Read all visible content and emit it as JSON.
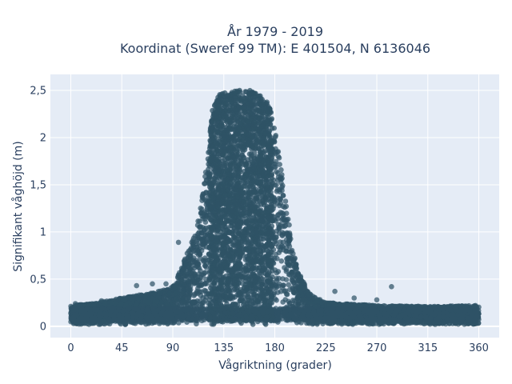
{
  "chart_data": {
    "type": "scatter",
    "title_lines": [
      "År 1979 - 2019",
      "Koordinat (Sweref 99 TM): E 401504, N 6136046"
    ],
    "xlabel": "Vågriktning (grader)",
    "ylabel": "Signifikant våghöjd (m)",
    "xlim": [
      -18,
      378
    ],
    "ylim": [
      -0.12,
      2.67
    ],
    "x_ticks": [
      {
        "value": 0,
        "label": "0"
      },
      {
        "value": 45,
        "label": "45"
      },
      {
        "value": 90,
        "label": "90"
      },
      {
        "value": 135,
        "label": "135"
      },
      {
        "value": 180,
        "label": "180"
      },
      {
        "value": 225,
        "label": "225"
      },
      {
        "value": 270,
        "label": "270"
      },
      {
        "value": 315,
        "label": "315"
      },
      {
        "value": 360,
        "label": "360"
      }
    ],
    "y_ticks": [
      {
        "value": 0,
        "label": "0"
      },
      {
        "value": 0.5,
        "label": "0,5"
      },
      {
        "value": 1,
        "label": "1"
      },
      {
        "value": 1.5,
        "label": "1,5"
      },
      {
        "value": 2,
        "label": "2"
      },
      {
        "value": 2.5,
        "label": "2,5"
      }
    ],
    "grid": true,
    "background_color": "#e5ecf6",
    "marker_color": "#2f5366",
    "envelope": {
      "description_points_upper_limit": [
        [
          0,
          0.22
        ],
        [
          20,
          0.24
        ],
        [
          45,
          0.3
        ],
        [
          60,
          0.33
        ],
        [
          75,
          0.36
        ],
        [
          90,
          0.42
        ],
        [
          100,
          0.7
        ],
        [
          110,
          1.0
        ],
        [
          115,
          1.3
        ],
        [
          120,
          1.75
        ],
        [
          125,
          2.3
        ],
        [
          130,
          2.45
        ],
        [
          140,
          2.5
        ],
        [
          150,
          2.5
        ],
        [
          160,
          2.5
        ],
        [
          170,
          2.42
        ],
        [
          175,
          2.35
        ],
        [
          180,
          2.1
        ],
        [
          185,
          1.75
        ],
        [
          190,
          1.3
        ],
        [
          195,
          0.9
        ],
        [
          200,
          0.6
        ],
        [
          210,
          0.35
        ],
        [
          225,
          0.25
        ],
        [
          270,
          0.22
        ],
        [
          315,
          0.21
        ],
        [
          360,
          0.22
        ]
      ],
      "lower_limit": 0.02
    },
    "outliers": [
      [
        4,
        0.24
      ],
      [
        27,
        0.27
      ],
      [
        48,
        0.02
      ],
      [
        58,
        0.43
      ],
      [
        72,
        0.45
      ],
      [
        84,
        0.45
      ],
      [
        95,
        0.89
      ],
      [
        233,
        0.37
      ],
      [
        250,
        0.3
      ],
      [
        270,
        0.28
      ],
      [
        283,
        0.42
      ],
      [
        340,
        0.21
      ],
      [
        357,
        0.22
      ]
    ]
  }
}
